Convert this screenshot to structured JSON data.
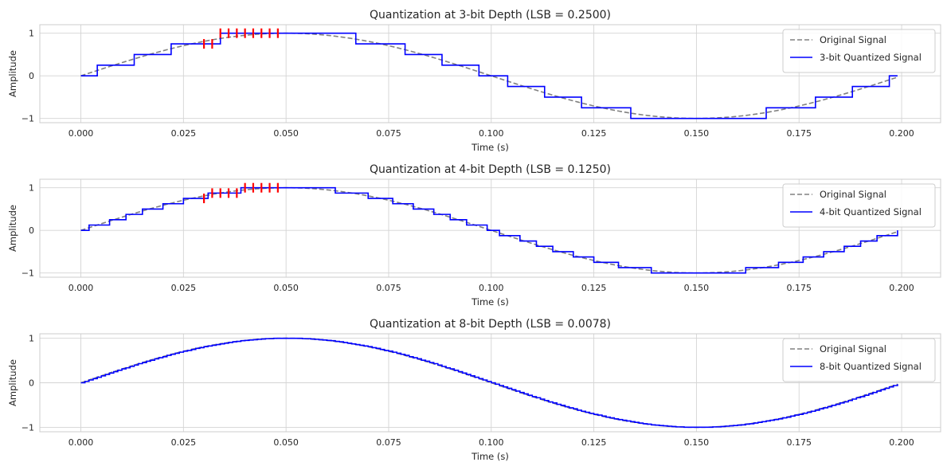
{
  "chart_data": [
    {
      "type": "line",
      "title": "Quantization at 3-bit Depth (LSB = 0.2500)",
      "xlabel": "Time (s)",
      "ylabel": "Amplitude",
      "xlim": [
        -0.01,
        0.2095
      ],
      "ylim": [
        -1.1,
        1.2
      ],
      "xticks": [
        0.0,
        0.025,
        0.05,
        0.075,
        0.1,
        0.125,
        0.15,
        0.175,
        0.2
      ],
      "xtick_labels": [
        "0.000",
        "0.025",
        "0.050",
        "0.075",
        "0.100",
        "0.125",
        "0.150",
        "0.175",
        "0.200"
      ],
      "yticks": [
        -1,
        0,
        1
      ],
      "ytick_labels": [
        "−1",
        "0",
        "1"
      ],
      "grid": true,
      "legend_position": "top-right",
      "series": [
        {
          "name": "Original Signal",
          "style": "dashed",
          "color": "#808080",
          "function": "sin(2*pi*5*t)",
          "t_range": [
            0.0,
            0.199
          ]
        },
        {
          "name": "3-bit Quantized Signal",
          "style": "step",
          "color": "#0000ff",
          "bits": 3,
          "lsb": 0.25,
          "sample_period": 0.001,
          "t_range": [
            0.0,
            0.199
          ]
        }
      ],
      "error_markers": {
        "color": "#ff0000",
        "x": [
          0.03,
          0.032,
          0.034,
          0.036,
          0.038,
          0.04,
          0.042,
          0.044,
          0.046,
          0.048
        ],
        "y": [
          0.75,
          0.75,
          1.0,
          1.0,
          1.0,
          1.0,
          1.0,
          1.0,
          1.0,
          1.0
        ]
      }
    },
    {
      "type": "line",
      "title": "Quantization at 4-bit Depth (LSB = 0.1250)",
      "xlabel": "Time (s)",
      "ylabel": "Amplitude",
      "xlim": [
        -0.01,
        0.2095
      ],
      "ylim": [
        -1.1,
        1.2
      ],
      "xticks": [
        0.0,
        0.025,
        0.05,
        0.075,
        0.1,
        0.125,
        0.15,
        0.175,
        0.2
      ],
      "xtick_labels": [
        "0.000",
        "0.025",
        "0.050",
        "0.075",
        "0.100",
        "0.125",
        "0.150",
        "0.175",
        "0.200"
      ],
      "yticks": [
        -1,
        0,
        1
      ],
      "ytick_labels": [
        "−1",
        "0",
        "1"
      ],
      "grid": true,
      "legend_position": "top-right",
      "series": [
        {
          "name": "Original Signal",
          "style": "dashed",
          "color": "#808080",
          "function": "sin(2*pi*5*t)",
          "t_range": [
            0.0,
            0.199
          ]
        },
        {
          "name": "4-bit Quantized Signal",
          "style": "step",
          "color": "#0000ff",
          "bits": 4,
          "lsb": 0.125,
          "sample_period": 0.001,
          "t_range": [
            0.0,
            0.199
          ]
        }
      ],
      "error_markers": {
        "color": "#ff0000",
        "x": [
          0.03,
          0.032,
          0.034,
          0.036,
          0.038,
          0.04,
          0.042,
          0.044,
          0.046,
          0.048
        ],
        "y": [
          0.75,
          0.875,
          0.875,
          0.875,
          0.875,
          1.0,
          1.0,
          1.0,
          1.0,
          1.0
        ]
      }
    },
    {
      "type": "line",
      "title": "Quantization at 8-bit Depth (LSB = 0.0078)",
      "xlabel": "Time (s)",
      "ylabel": "Amplitude",
      "xlim": [
        -0.01,
        0.2095
      ],
      "ylim": [
        -1.1,
        1.1
      ],
      "xticks": [
        0.0,
        0.025,
        0.05,
        0.075,
        0.1,
        0.125,
        0.15,
        0.175,
        0.2
      ],
      "xtick_labels": [
        "0.000",
        "0.025",
        "0.050",
        "0.075",
        "0.100",
        "0.125",
        "0.150",
        "0.175",
        "0.200"
      ],
      "yticks": [
        -1,
        0,
        1
      ],
      "ytick_labels": [
        "−1",
        "0",
        "1"
      ],
      "grid": true,
      "legend_position": "top-right",
      "series": [
        {
          "name": "Original Signal",
          "style": "dashed",
          "color": "#808080",
          "function": "sin(2*pi*5*t)",
          "t_range": [
            0.0,
            0.199
          ]
        },
        {
          "name": "8-bit Quantized Signal",
          "style": "step",
          "color": "#0000ff",
          "bits": 8,
          "lsb": 0.0078,
          "sample_period": 0.001,
          "t_range": [
            0.0,
            0.199
          ]
        }
      ]
    }
  ]
}
